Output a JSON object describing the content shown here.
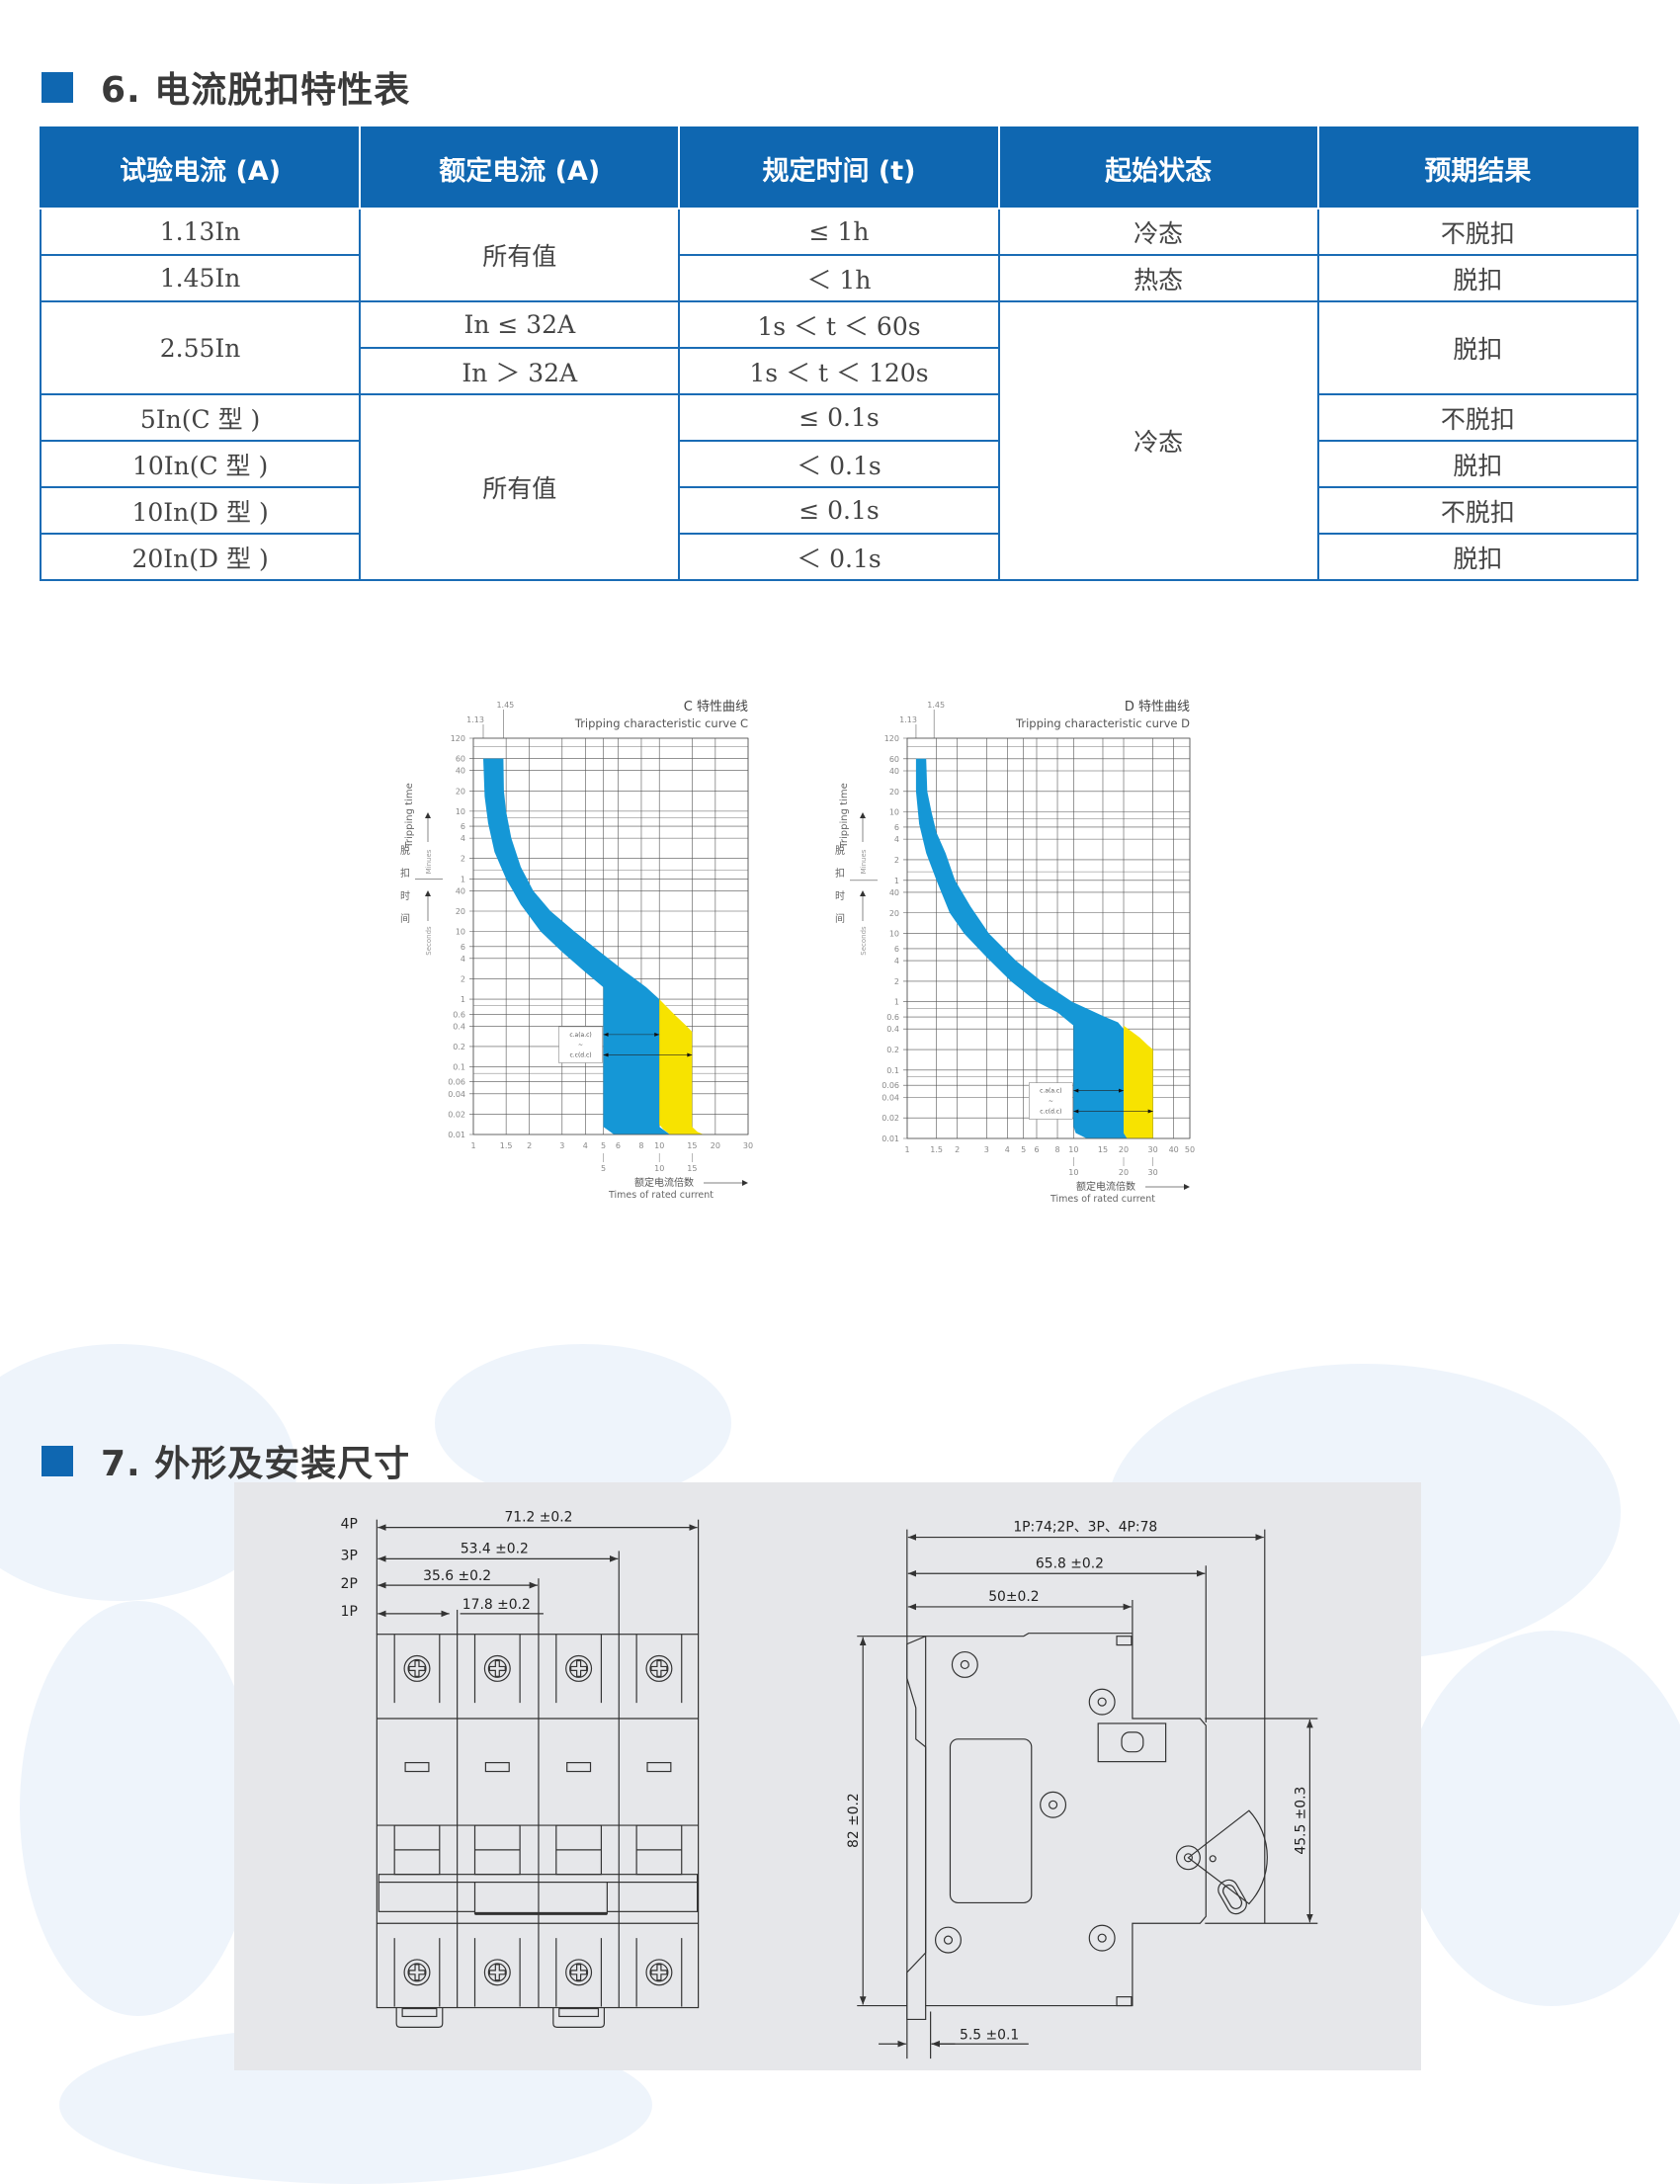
{
  "section6": {
    "title": "6. 电流脱扣特性表"
  },
  "table": {
    "headers": [
      "试验电流 (A)",
      "额定电流 (A)",
      "规定时间 (t)",
      "起始状态",
      "预期结果"
    ],
    "rows": [
      {
        "test_current": "1.13In",
        "rated_current": "所有值",
        "time": "≤ 1h",
        "state": "冷态",
        "result": "不脱扣"
      },
      {
        "test_current": "1.45In",
        "time": "＜ 1h",
        "state": "热态",
        "result": "脱扣"
      },
      {
        "test_current": "2.55In",
        "rated_current": "In ≤ 32A",
        "time": "1s ＜ t ＜ 60s",
        "state": "冷态",
        "result": "脱扣"
      },
      {
        "rated_current": "In ＞ 32A",
        "time": "1s ＜ t ＜ 120s"
      },
      {
        "test_current": "5In(C 型 )",
        "rated_current": "所有值",
        "time": "≤ 0.1s",
        "result": "不脱扣"
      },
      {
        "test_current": "10In(C 型 )",
        "time": "＜ 0.1s",
        "result": "脱扣"
      },
      {
        "test_current": "10In(D 型 )",
        "time": "≤ 0.1s",
        "result": "不脱扣"
      },
      {
        "test_current": "20In(D 型 )",
        "time": "＜ 0.1s",
        "result": "脱扣"
      }
    ]
  },
  "chart_data": [
    {
      "type": "area",
      "title": "C 特性曲线",
      "subtitle": "Tripping characteristic curve C",
      "ylabel": "Tripping time",
      "ylabel_cn": [
        "脱",
        "扣",
        "时",
        "间"
      ],
      "ylabel_minutes": "Minues",
      "ylabel_seconds": "Seconds",
      "xlabel_cn": "额定电流倍数",
      "xlabel": "Times of rated current",
      "x_scale": "log",
      "y_scale": "log",
      "x_range": [
        1,
        30
      ],
      "y_range_seconds": [
        0.01,
        7200
      ],
      "grid": true,
      "x_ticks": [
        "1",
        "1.5",
        "2",
        "3",
        "4",
        "5",
        "6",
        "8",
        "10",
        "15",
        "20",
        "30"
      ],
      "x_secondary_ticks": [
        "5",
        "10",
        "15"
      ],
      "top_markers": [
        "1.13",
        "1.45"
      ],
      "y_ticks": [
        {
          "label": "120",
          "unit": "min"
        },
        {
          "label": "60",
          "unit": "min"
        },
        {
          "label": "40",
          "unit": "min"
        },
        {
          "label": "20",
          "unit": "min"
        },
        {
          "label": "10",
          "unit": "min"
        },
        {
          "label": "6",
          "unit": "min"
        },
        {
          "label": "4",
          "unit": "min"
        },
        {
          "label": "2",
          "unit": "min"
        },
        {
          "label": "1",
          "unit": "min"
        },
        {
          "label": "40",
          "unit": "s"
        },
        {
          "label": "20",
          "unit": "s"
        },
        {
          "label": "10",
          "unit": "s"
        },
        {
          "label": "6",
          "unit": "s"
        },
        {
          "label": "4",
          "unit": "s"
        },
        {
          "label": "2",
          "unit": "s"
        },
        {
          "label": "1",
          "unit": "s"
        },
        {
          "label": "0.6",
          "unit": "s"
        },
        {
          "label": "0.4",
          "unit": "s"
        },
        {
          "label": "0.2",
          "unit": "s"
        },
        {
          "label": "0.1",
          "unit": "s"
        },
        {
          "label": "0.06",
          "unit": "s"
        },
        {
          "label": "0.04",
          "unit": "s"
        },
        {
          "label": "0.02",
          "unit": "s"
        },
        {
          "label": "0.01",
          "unit": "s"
        }
      ],
      "bands": [
        {
          "color": "#1597d6",
          "points": [
            [
              1.13,
              3600
            ],
            [
              1.45,
              3600
            ],
            [
              1.46,
              1200
            ],
            [
              1.5,
              600
            ],
            [
              1.6,
              240
            ],
            [
              1.8,
              90
            ],
            [
              2.1,
              40
            ],
            [
              2.6,
              20
            ],
            [
              3.5,
              10
            ],
            [
              4.8,
              5
            ],
            [
              6.5,
              2.6
            ],
            [
              8.5,
              1.5
            ],
            [
              10,
              1
            ],
            [
              10,
              0.013
            ],
            [
              11.4,
              0.01
            ],
            [
              5.7,
              0.01
            ],
            [
              5,
              0.013
            ],
            [
              5,
              1.5
            ],
            [
              4,
              2.5
            ],
            [
              3,
              5
            ],
            [
              2.3,
              10
            ],
            [
              1.8,
              25
            ],
            [
              1.5,
              60
            ],
            [
              1.3,
              150
            ],
            [
              1.2,
              400
            ],
            [
              1.15,
              1000
            ],
            [
              1.13,
              3600
            ]
          ]
        },
        {
          "color": "#f7e300",
          "points": [
            [
              10,
              1
            ],
            [
              12,
              0.6
            ],
            [
              14,
              0.4
            ],
            [
              15,
              0.33
            ],
            [
              15,
              0.013
            ],
            [
              16,
              0.011
            ],
            [
              17.3,
              0.01
            ],
            [
              11.4,
              0.01
            ],
            [
              10.5,
              0.012
            ],
            [
              10,
              0.014
            ]
          ]
        }
      ],
      "annotation": {
        "lines": [
          "c.a(a.c)",
          "~",
          "c.c(d.c)"
        ],
        "arrows": [
          [
            5,
            10,
            0.3
          ],
          [
            5,
            15,
            0.15
          ]
        ]
      }
    },
    {
      "type": "area",
      "title": "D 特性曲线",
      "subtitle": "Tripping characteristic curve D",
      "ylabel": "Tripping time",
      "ylabel_cn": [
        "脱",
        "扣",
        "时",
        "间"
      ],
      "ylabel_minutes": "Minues",
      "ylabel_seconds": "Seconds",
      "xlabel_cn": "额定电流倍数",
      "xlabel": "Times of rated current",
      "x_scale": "log",
      "y_scale": "log",
      "x_range": [
        1,
        50
      ],
      "y_range_seconds": [
        0.01,
        7200
      ],
      "grid": true,
      "x_ticks": [
        "1",
        "1.5",
        "2",
        "3",
        "4",
        "5",
        "6",
        "8",
        "10",
        "15",
        "20",
        "30",
        "40",
        "50"
      ],
      "x_secondary_ticks": [
        "10",
        "20",
        "30"
      ],
      "top_markers": [
        "1.13",
        "1.45"
      ],
      "y_ticks": [
        {
          "label": "120",
          "unit": "min"
        },
        {
          "label": "60",
          "unit": "min"
        },
        {
          "label": "40",
          "unit": "min"
        },
        {
          "label": "20",
          "unit": "min"
        },
        {
          "label": "10",
          "unit": "min"
        },
        {
          "label": "6",
          "unit": "min"
        },
        {
          "label": "4",
          "unit": "min"
        },
        {
          "label": "2",
          "unit": "min"
        },
        {
          "label": "1",
          "unit": "min"
        },
        {
          "label": "40",
          "unit": "s"
        },
        {
          "label": "20",
          "unit": "s"
        },
        {
          "label": "10",
          "unit": "s"
        },
        {
          "label": "6",
          "unit": "s"
        },
        {
          "label": "4",
          "unit": "s"
        },
        {
          "label": "2",
          "unit": "s"
        },
        {
          "label": "1",
          "unit": "s"
        },
        {
          "label": "0.6",
          "unit": "s"
        },
        {
          "label": "0.4",
          "unit": "s"
        },
        {
          "label": "0.2",
          "unit": "s"
        },
        {
          "label": "0.1",
          "unit": "s"
        },
        {
          "label": "0.06",
          "unit": "s"
        },
        {
          "label": "0.04",
          "unit": "s"
        },
        {
          "label": "0.02",
          "unit": "s"
        },
        {
          "label": "0.01",
          "unit": "s"
        }
      ],
      "bands": [
        {
          "color": "#1597d6",
          "points": [
            [
              1.13,
              3600
            ],
            [
              1.3,
              3600
            ],
            [
              1.32,
              1200
            ],
            [
              1.4,
              600
            ],
            [
              1.5,
              300
            ],
            [
              1.7,
              150
            ],
            [
              1.94,
              60
            ],
            [
              2.4,
              25
            ],
            [
              3.1,
              10
            ],
            [
              4.5,
              4
            ],
            [
              6.4,
              2
            ],
            [
              9.8,
              1
            ],
            [
              15.5,
              0.6
            ],
            [
              18.5,
              0.5
            ],
            [
              20,
              0.4
            ],
            [
              20,
              0.012
            ],
            [
              21,
              0.01
            ],
            [
              12,
              0.01
            ],
            [
              10.3,
              0.012
            ],
            [
              10,
              0.015
            ],
            [
              10,
              0.45
            ],
            [
              8,
              0.7
            ],
            [
              6,
              1
            ],
            [
              4.2,
              2
            ],
            [
              3,
              4.5
            ],
            [
              2.2,
              10
            ],
            [
              1.8,
              20
            ],
            [
              1.5,
              60
            ],
            [
              1.3,
              150
            ],
            [
              1.18,
              400
            ],
            [
              1.13,
              1200
            ],
            [
              1.13,
              3600
            ]
          ]
        },
        {
          "color": "#f7e300",
          "points": [
            [
              20,
              0.45
            ],
            [
              25,
              0.3
            ],
            [
              28,
              0.23
            ],
            [
              30,
              0.2
            ],
            [
              30,
              0.01
            ],
            [
              21,
              0.01
            ],
            [
              20,
              0.012
            ]
          ]
        }
      ],
      "annotation": {
        "lines": [
          "c.a(a.c)",
          "~",
          "c.c(d.c)"
        ],
        "arrows": [
          [
            10,
            20,
            0.05
          ],
          [
            10,
            30,
            0.025
          ]
        ]
      }
    }
  ],
  "section7": {
    "title": "7. 外形及安装尺寸"
  },
  "dimensions": {
    "front": {
      "poles": [
        "4P",
        "3P",
        "2P",
        "1P"
      ],
      "widths": [
        "71.2 ±0.2",
        "53.4 ±0.2",
        "35.6 ±0.2",
        "17.8 ±0.2"
      ]
    },
    "side": {
      "overall_depth": "1P:74;2P、3P、4P:78",
      "depth_mid": "65.8 ±0.2",
      "depth_body": "50±0.2",
      "height": "82 ±0.2",
      "front_height": "45.5 ±0.3",
      "rail_offset": "5.5 ±0.1"
    }
  }
}
